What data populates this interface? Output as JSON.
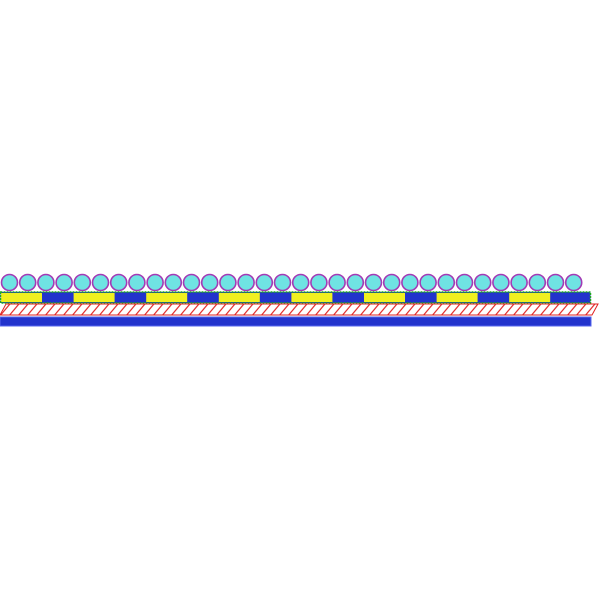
{
  "diagram": {
    "particle_row": {
      "count": 32,
      "fill": "#6fe3e3",
      "stroke": "#a33ab5"
    },
    "patterned_layer": {
      "segments": 8,
      "yellow": "#f0f020",
      "blue": "#2233cc",
      "border": "#22aa22"
    },
    "hatched_layer": {
      "stroke": "#e02020",
      "fill": "#ffffff"
    },
    "base_layer": {
      "fill": "#2233cc"
    }
  }
}
